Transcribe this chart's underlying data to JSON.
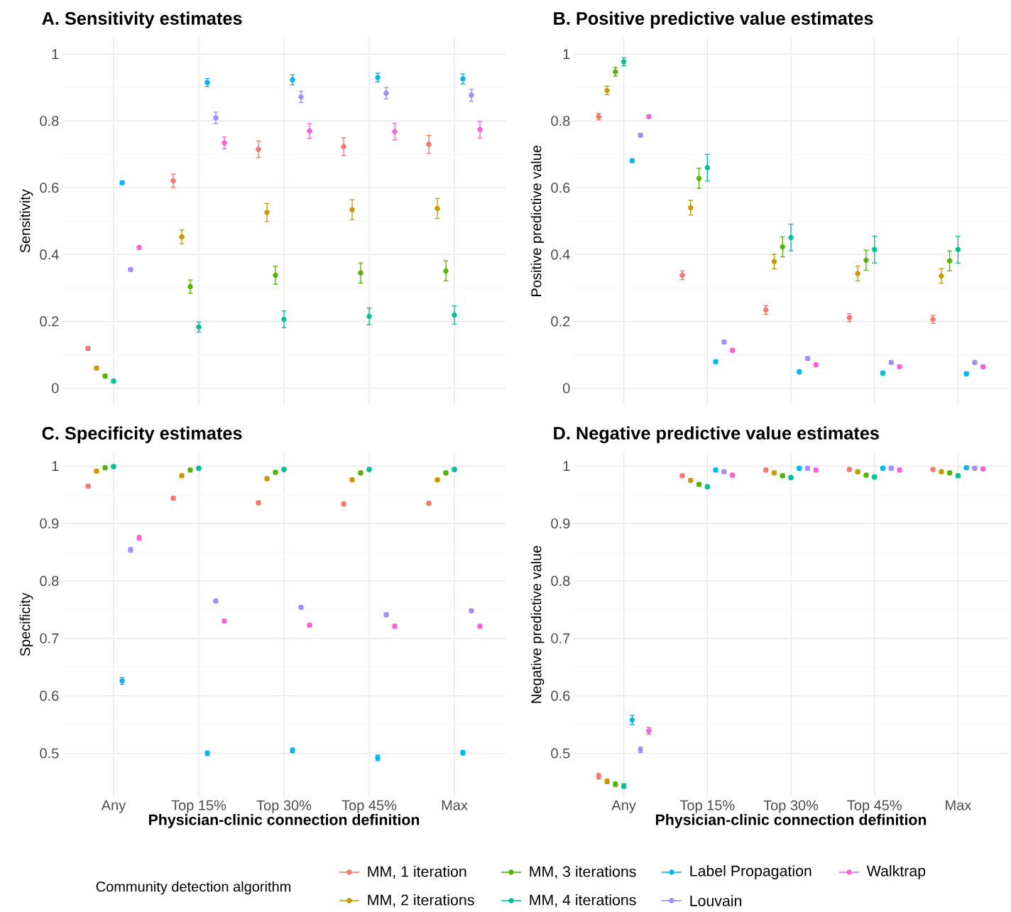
{
  "chart_data": [
    {
      "type": "scatter",
      "title": "A. Sensitivity estimates",
      "ylabel": "Sensitivity",
      "categories": [
        null,
        null,
        null,
        null,
        null
      ],
      "ylim": [
        -0.05,
        1.05
      ],
      "yticks": [
        0,
        0.2,
        0.4,
        0.6,
        0.8,
        1
      ],
      "grid": true,
      "tick_labels": "y",
      "marker": "circle",
      "legend": "bottom",
      "legend_title": "Community detection algorithm",
      "series": [
        {
          "name": "MM, 1 iteration",
          "color": "#F8766D",
          "values": [
            0.119,
            0.621,
            0.715,
            0.723,
            0.73
          ],
          "errors": [
            0.005,
            0.02,
            0.025,
            0.027,
            0.027
          ]
        },
        {
          "name": "MM, 2 iterations",
          "color": "#C49A00",
          "values": [
            0.06,
            0.453,
            0.526,
            0.534,
            0.538
          ],
          "errors": [
            0.005,
            0.021,
            0.027,
            0.03,
            0.03
          ]
        },
        {
          "name": "MM, 3 iterations",
          "color": "#53B400",
          "values": [
            0.036,
            0.304,
            0.338,
            0.345,
            0.351
          ],
          "errors": [
            0.005,
            0.02,
            0.027,
            0.03,
            0.03
          ]
        },
        {
          "name": "MM, 4 iterations",
          "color": "#00C094",
          "values": [
            0.021,
            0.183,
            0.206,
            0.215,
            0.219
          ],
          "errors": [
            0.005,
            0.015,
            0.025,
            0.025,
            0.027
          ]
        },
        {
          "name": "Label Propagation",
          "color": "#00B6EB",
          "values": [
            0.615,
            0.915,
            0.923,
            0.93,
            0.926
          ],
          "errors": [
            0.005,
            0.012,
            0.015,
            0.013,
            0.015
          ]
        },
        {
          "name": "Louvain",
          "color": "#A58AFF",
          "values": [
            0.355,
            0.809,
            0.872,
            0.883,
            0.877
          ],
          "errors": [
            0.005,
            0.017,
            0.017,
            0.017,
            0.018
          ]
        },
        {
          "name": "Walktrap",
          "color": "#FB61D7",
          "values": [
            0.421,
            0.734,
            0.77,
            0.768,
            0.774
          ],
          "errors": [
            0.005,
            0.018,
            0.022,
            0.025,
            0.025
          ]
        }
      ]
    },
    {
      "type": "scatter",
      "title": "B. Positive predictive value estimates",
      "ylabel": "Positive predictive value",
      "categories": [
        null,
        null,
        null,
        null,
        null
      ],
      "ylim": [
        -0.05,
        1.05
      ],
      "yticks": [
        0,
        0.2,
        0.4,
        0.6,
        0.8,
        1
      ],
      "grid": true,
      "tick_labels": "y",
      "marker": "circle",
      "series": [
        {
          "color": "#F8766D",
          "values": [
            0.813,
            0.338,
            0.234,
            0.211,
            0.206
          ],
          "errors": [
            0.01,
            0.013,
            0.013,
            0.012,
            0.012
          ]
        },
        {
          "color": "#C49A00",
          "values": [
            0.891,
            0.54,
            0.379,
            0.343,
            0.336
          ],
          "errors": [
            0.013,
            0.022,
            0.022,
            0.022,
            0.022
          ]
        },
        {
          "color": "#53B400",
          "values": [
            0.947,
            0.628,
            0.423,
            0.383,
            0.381
          ],
          "errors": [
            0.013,
            0.03,
            0.03,
            0.03,
            0.03
          ]
        },
        {
          "color": "#00C094",
          "values": [
            0.977,
            0.66,
            0.451,
            0.415,
            0.415
          ],
          "errors": [
            0.012,
            0.04,
            0.04,
            0.04,
            0.04
          ]
        },
        {
          "color": "#00B6EB",
          "values": [
            0.681,
            0.079,
            0.049,
            0.045,
            0.043
          ],
          "errors": [
            0.005,
            0.005,
            0.005,
            0.005,
            0.005
          ]
        },
        {
          "color": "#A58AFF",
          "values": [
            0.757,
            0.138,
            0.089,
            0.077,
            0.077
          ],
          "errors": [
            0.005,
            0.005,
            0.005,
            0.005,
            0.005
          ]
        },
        {
          "color": "#FB61D7",
          "values": [
            0.813,
            0.113,
            0.07,
            0.064,
            0.064
          ],
          "errors": [
            0.005,
            0.005,
            0.005,
            0.005,
            0.005
          ]
        }
      ]
    },
    {
      "type": "scatter",
      "title": "C. Specificity estimates",
      "ylabel": "Specificity",
      "xlabel": "Physician-clinic connection definition",
      "categories": [
        "Any",
        "Top 15%",
        "Top 30%",
        "Top 45%",
        "Max"
      ],
      "ylim": [
        0.424,
        1.024
      ],
      "yticks": [
        0.5,
        0.6,
        0.7,
        0.8,
        0.9,
        1
      ],
      "grid": true,
      "marker": "circle",
      "series": [
        {
          "color": "#F8766D",
          "values": [
            0.965,
            0.944,
            0.936,
            0.934,
            0.935
          ],
          "errors": [
            0.003,
            0.003,
            0.003,
            0.003,
            0.003
          ]
        },
        {
          "color": "#C49A00",
          "values": [
            0.991,
            0.983,
            0.978,
            0.976,
            0.976
          ],
          "errors": [
            0.003,
            0.003,
            0.003,
            0.003,
            0.003
          ]
        },
        {
          "color": "#53B400",
          "values": [
            0.997,
            0.993,
            0.989,
            0.988,
            0.988
          ],
          "errors": [
            0.003,
            0.003,
            0.003,
            0.003,
            0.003
          ]
        },
        {
          "color": "#00C094",
          "values": [
            0.999,
            0.996,
            0.994,
            0.994,
            0.994
          ],
          "errors": [
            0.003,
            0.003,
            0.003,
            0.003,
            0.003
          ]
        },
        {
          "color": "#00B6EB",
          "values": [
            0.626,
            0.5,
            0.505,
            0.492,
            0.501
          ],
          "errors": [
            0.006,
            0.004,
            0.004,
            0.005,
            0.004
          ]
        },
        {
          "color": "#A58AFF",
          "values": [
            0.854,
            0.765,
            0.754,
            0.741,
            0.748
          ],
          "errors": [
            0.004,
            0.003,
            0.003,
            0.003,
            0.003
          ]
        },
        {
          "color": "#FB61D7",
          "values": [
            0.875,
            0.73,
            0.723,
            0.721,
            0.721
          ],
          "errors": [
            0.004,
            0.003,
            0.003,
            0.003,
            0.003
          ]
        }
      ]
    },
    {
      "type": "scatter",
      "title": "D. Negative predictive value estimates",
      "ylabel": "Negative predictive value",
      "xlabel": "Physician-clinic connection definition",
      "categories": [
        "Any",
        "Top 15%",
        "Top 30%",
        "Top 45%",
        "Max"
      ],
      "ylim": [
        0.424,
        1.024
      ],
      "yticks": [
        0.5,
        0.6,
        0.7,
        0.8,
        0.9,
        1
      ],
      "grid": true,
      "marker": "circle",
      "series": [
        {
          "color": "#F8766D",
          "values": [
            0.46,
            0.983,
            0.993,
            0.994,
            0.994
          ],
          "errors": [
            0.005,
            0.003,
            0.003,
            0.003,
            0.003
          ]
        },
        {
          "color": "#C49A00",
          "values": [
            0.451,
            0.975,
            0.988,
            0.99,
            0.99
          ],
          "errors": [
            0.004,
            0.003,
            0.003,
            0.003,
            0.003
          ]
        },
        {
          "color": "#53B400",
          "values": [
            0.446,
            0.968,
            0.983,
            0.984,
            0.988
          ],
          "errors": [
            0.004,
            0.003,
            0.003,
            0.003,
            0.003
          ]
        },
        {
          "color": "#00C094",
          "values": [
            0.443,
            0.964,
            0.98,
            0.981,
            0.983
          ],
          "errors": [
            0.004,
            0.003,
            0.003,
            0.003,
            0.003
          ]
        },
        {
          "color": "#00B6EB",
          "values": [
            0.558,
            0.993,
            0.996,
            0.996,
            0.997
          ],
          "errors": [
            0.008,
            0.003,
            0.003,
            0.003,
            0.003
          ]
        },
        {
          "color": "#A58AFF",
          "values": [
            0.506,
            0.99,
            0.996,
            0.996,
            0.996
          ],
          "errors": [
            0.005,
            0.003,
            0.003,
            0.003,
            0.003
          ]
        },
        {
          "color": "#FB61D7",
          "values": [
            0.539,
            0.984,
            0.993,
            0.993,
            0.995
          ],
          "errors": [
            0.006,
            0.003,
            0.003,
            0.003,
            0.003
          ]
        }
      ]
    }
  ]
}
